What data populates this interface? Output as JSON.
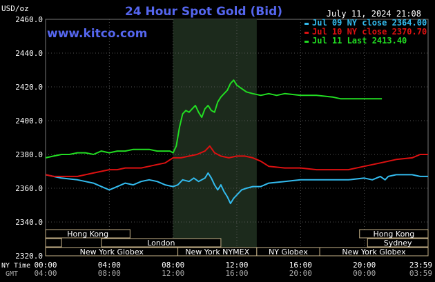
{
  "chart_data": {
    "type": "line",
    "title": "24 Hour Spot Gold (Bid)",
    "subtitle": "July 11, 2024 21:08",
    "watermark": "www.kitco.com",
    "ylabel": "USD/oz",
    "ylim": [
      2320,
      2460
    ],
    "y_ticks": [
      "2460.0",
      "2440.0",
      "2420.0",
      "2400.0",
      "2380.0",
      "2360.0",
      "2340.0",
      "2320.0"
    ],
    "x_ticks_ny": [
      "00:00",
      "04:00",
      "08:00",
      "12:00",
      "16:00",
      "20:00",
      "23:59"
    ],
    "x_ticks_gmt": [
      "04:00",
      "08:00",
      "12:00",
      "16:00",
      "20:00",
      "00:00",
      "03:59"
    ],
    "x_label_ny": "NY Time",
    "x_label_gmt": "GMT",
    "x_unit": "hours (NY time)",
    "x_range": [
      0,
      24
    ],
    "highlight_range": [
      8.0,
      13.25
    ],
    "legend_position": "top-right",
    "series": [
      {
        "name": "Jul 09 NY close 2364.00",
        "color": "#33bbee",
        "points": [
          [
            0,
            2368
          ],
          [
            0.5,
            2367
          ],
          [
            1,
            2366
          ],
          [
            1.5,
            2365.5
          ],
          [
            2,
            2365
          ],
          [
            2.5,
            2364
          ],
          [
            3,
            2363
          ],
          [
            3.5,
            2361
          ],
          [
            4,
            2359
          ],
          [
            4.5,
            2361
          ],
          [
            5,
            2363
          ],
          [
            5.5,
            2362
          ],
          [
            6,
            2364
          ],
          [
            6.5,
            2365
          ],
          [
            7,
            2364
          ],
          [
            7.5,
            2362
          ],
          [
            8,
            2361
          ],
          [
            8.3,
            2362
          ],
          [
            8.6,
            2365
          ],
          [
            9,
            2364
          ],
          [
            9.3,
            2366
          ],
          [
            9.6,
            2364
          ],
          [
            10,
            2366
          ],
          [
            10.2,
            2369
          ],
          [
            10.4,
            2366
          ],
          [
            10.6,
            2362
          ],
          [
            10.8,
            2359
          ],
          [
            11,
            2362
          ],
          [
            11.2,
            2358
          ],
          [
            11.4,
            2355
          ],
          [
            11.6,
            2351
          ],
          [
            11.8,
            2354
          ],
          [
            12,
            2356
          ],
          [
            12.3,
            2359
          ],
          [
            12.6,
            2360
          ],
          [
            13,
            2361
          ],
          [
            13.5,
            2361
          ],
          [
            14,
            2363
          ],
          [
            15,
            2364
          ],
          [
            16,
            2365
          ],
          [
            17,
            2365
          ],
          [
            18,
            2365
          ],
          [
            19,
            2365
          ],
          [
            20,
            2366
          ],
          [
            20.5,
            2365
          ],
          [
            21,
            2367
          ],
          [
            21.3,
            2365
          ],
          [
            21.5,
            2367
          ],
          [
            22,
            2368
          ],
          [
            22.5,
            2368
          ],
          [
            23,
            2368
          ],
          [
            23.5,
            2367
          ],
          [
            24,
            2367
          ]
        ]
      },
      {
        "name": "Jul 10 NY close 2370.70",
        "color": "#dd1111",
        "points": [
          [
            0,
            2368
          ],
          [
            0.5,
            2367
          ],
          [
            1,
            2367
          ],
          [
            1.5,
            2367
          ],
          [
            2,
            2367
          ],
          [
            2.5,
            2368
          ],
          [
            3,
            2369
          ],
          [
            3.5,
            2370
          ],
          [
            4,
            2371
          ],
          [
            4.5,
            2371
          ],
          [
            5,
            2372
          ],
          [
            5.5,
            2372
          ],
          [
            6,
            2372
          ],
          [
            6.5,
            2373
          ],
          [
            7,
            2374
          ],
          [
            7.5,
            2375
          ],
          [
            8,
            2378
          ],
          [
            8.5,
            2378
          ],
          [
            9,
            2379
          ],
          [
            9.5,
            2380
          ],
          [
            10,
            2382
          ],
          [
            10.3,
            2385
          ],
          [
            10.6,
            2381
          ],
          [
            11,
            2379
          ],
          [
            11.5,
            2378
          ],
          [
            12,
            2379
          ],
          [
            12.5,
            2379
          ],
          [
            13,
            2378
          ],
          [
            13.5,
            2376
          ],
          [
            14,
            2373
          ],
          [
            15,
            2372
          ],
          [
            16,
            2372
          ],
          [
            17,
            2371
          ],
          [
            18,
            2371
          ],
          [
            19,
            2371
          ],
          [
            20,
            2373
          ],
          [
            21,
            2375
          ],
          [
            22,
            2377
          ],
          [
            23,
            2378
          ],
          [
            23.5,
            2380
          ],
          [
            24,
            2380
          ]
        ]
      },
      {
        "name": "Jul 11 Last 2413.40",
        "color": "#22dd22",
        "points": [
          [
            0,
            2378
          ],
          [
            0.5,
            2379
          ],
          [
            1,
            2380
          ],
          [
            1.5,
            2380
          ],
          [
            2,
            2381
          ],
          [
            2.5,
            2381
          ],
          [
            3,
            2380
          ],
          [
            3.5,
            2382
          ],
          [
            4,
            2381
          ],
          [
            4.5,
            2382
          ],
          [
            5,
            2382
          ],
          [
            5.5,
            2383
          ],
          [
            6,
            2383
          ],
          [
            6.5,
            2383
          ],
          [
            7,
            2382
          ],
          [
            7.5,
            2382
          ],
          [
            7.8,
            2382
          ],
          [
            8.0,
            2381
          ],
          [
            8.2,
            2385
          ],
          [
            8.4,
            2396
          ],
          [
            8.6,
            2404
          ],
          [
            8.8,
            2406
          ],
          [
            9,
            2405
          ],
          [
            9.2,
            2407
          ],
          [
            9.4,
            2409
          ],
          [
            9.6,
            2405
          ],
          [
            9.8,
            2402
          ],
          [
            10,
            2407
          ],
          [
            10.2,
            2409
          ],
          [
            10.4,
            2406
          ],
          [
            10.6,
            2405
          ],
          [
            10.8,
            2411
          ],
          [
            11,
            2414
          ],
          [
            11.2,
            2416
          ],
          [
            11.4,
            2418
          ],
          [
            11.6,
            2422
          ],
          [
            11.8,
            2424
          ],
          [
            12,
            2421
          ],
          [
            12.3,
            2419
          ],
          [
            12.6,
            2417
          ],
          [
            13,
            2416
          ],
          [
            13.5,
            2415
          ],
          [
            14,
            2416
          ],
          [
            14.5,
            2415
          ],
          [
            15,
            2416
          ],
          [
            16,
            2415
          ],
          [
            17,
            2415
          ],
          [
            18,
            2414
          ],
          [
            18.5,
            2413
          ],
          [
            19,
            2413
          ],
          [
            19.5,
            2413
          ],
          [
            20,
            2413
          ],
          [
            20.5,
            2413
          ],
          [
            21.1,
            2413
          ]
        ]
      }
    ],
    "sessions": [
      {
        "label": "Hong Kong",
        "start": 0,
        "end": 5.3,
        "row": 0
      },
      {
        "label": "Hong Kong",
        "start": 19.7,
        "end": 24,
        "row": 0
      },
      {
        "label": "",
        "start": 0,
        "end": 1.0,
        "row": 1
      },
      {
        "label": "London",
        "start": 3.5,
        "end": 11.0,
        "row": 1
      },
      {
        "label": "Sydney",
        "start": 20.2,
        "end": 24,
        "row": 1
      },
      {
        "label": "New York Globex",
        "start": 0,
        "end": 8.3,
        "row": 2
      },
      {
        "label": "New York NYMEX",
        "start": 8.3,
        "end": 13.25,
        "row": 2
      },
      {
        "label": "NY Globex",
        "start": 13.25,
        "end": 17.2,
        "row": 2
      },
      {
        "label": "New York Globex",
        "start": 17.2,
        "end": 24,
        "row": 2
      }
    ]
  }
}
